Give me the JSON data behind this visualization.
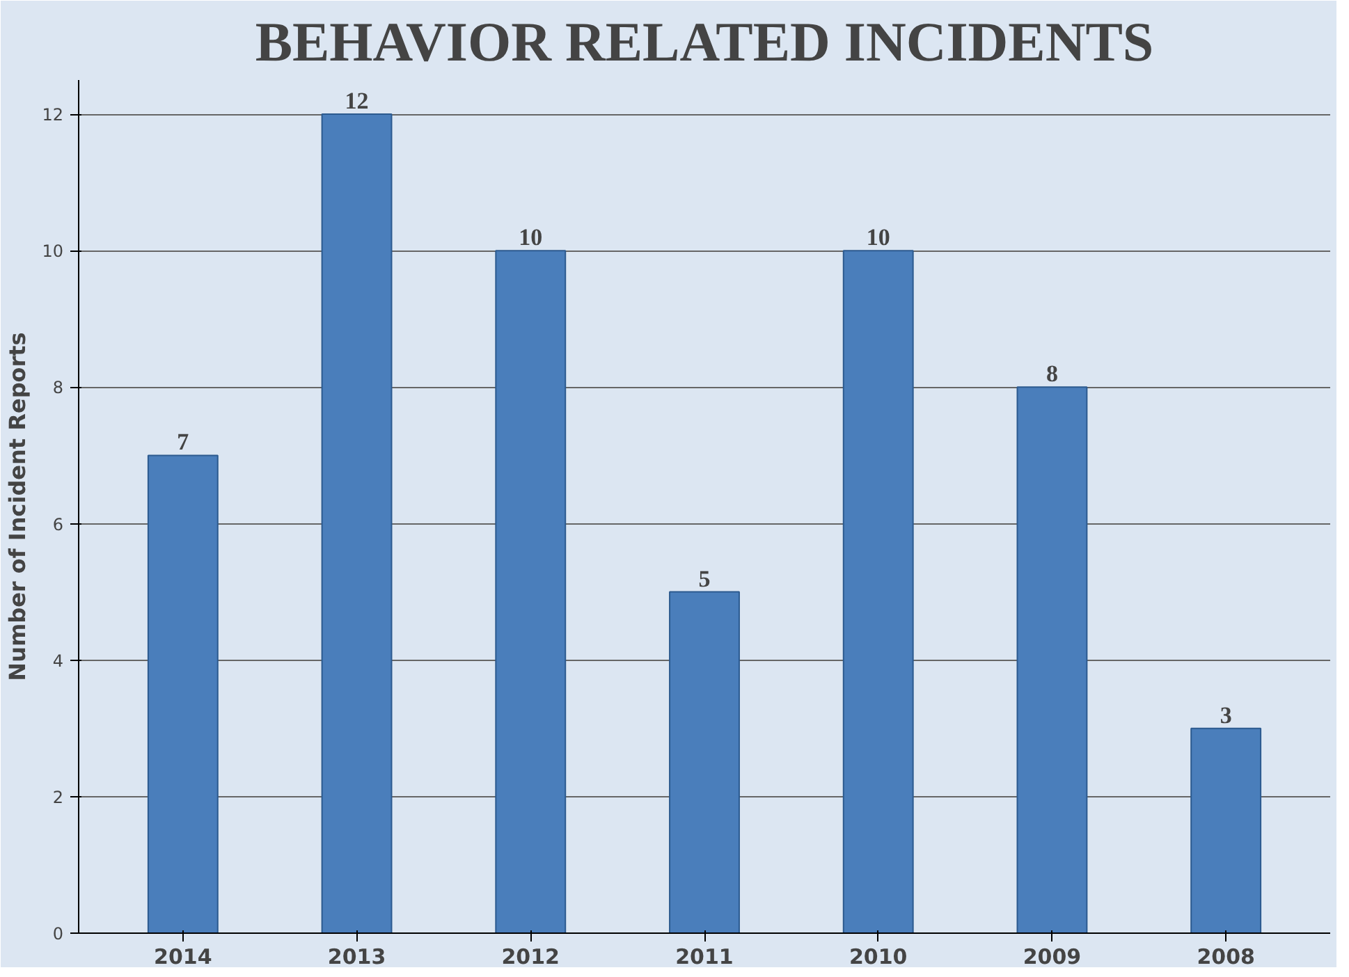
{
  "chart_data": {
    "type": "bar",
    "title": "BEHAVIOR RELATED INCIDENTS",
    "ylabel": "Number of Incident Reports",
    "categories": [
      "2014",
      "2013",
      "2012",
      "2011",
      "2010",
      "2009",
      "2008"
    ],
    "values": [
      7,
      12,
      10,
      5,
      10,
      8,
      3
    ],
    "color": "#4a7ebb",
    "ylim": [
      0,
      12.5
    ],
    "yticks": [
      0,
      2,
      4,
      6,
      8,
      10,
      12
    ],
    "grid": "y",
    "data_labels": true
  }
}
